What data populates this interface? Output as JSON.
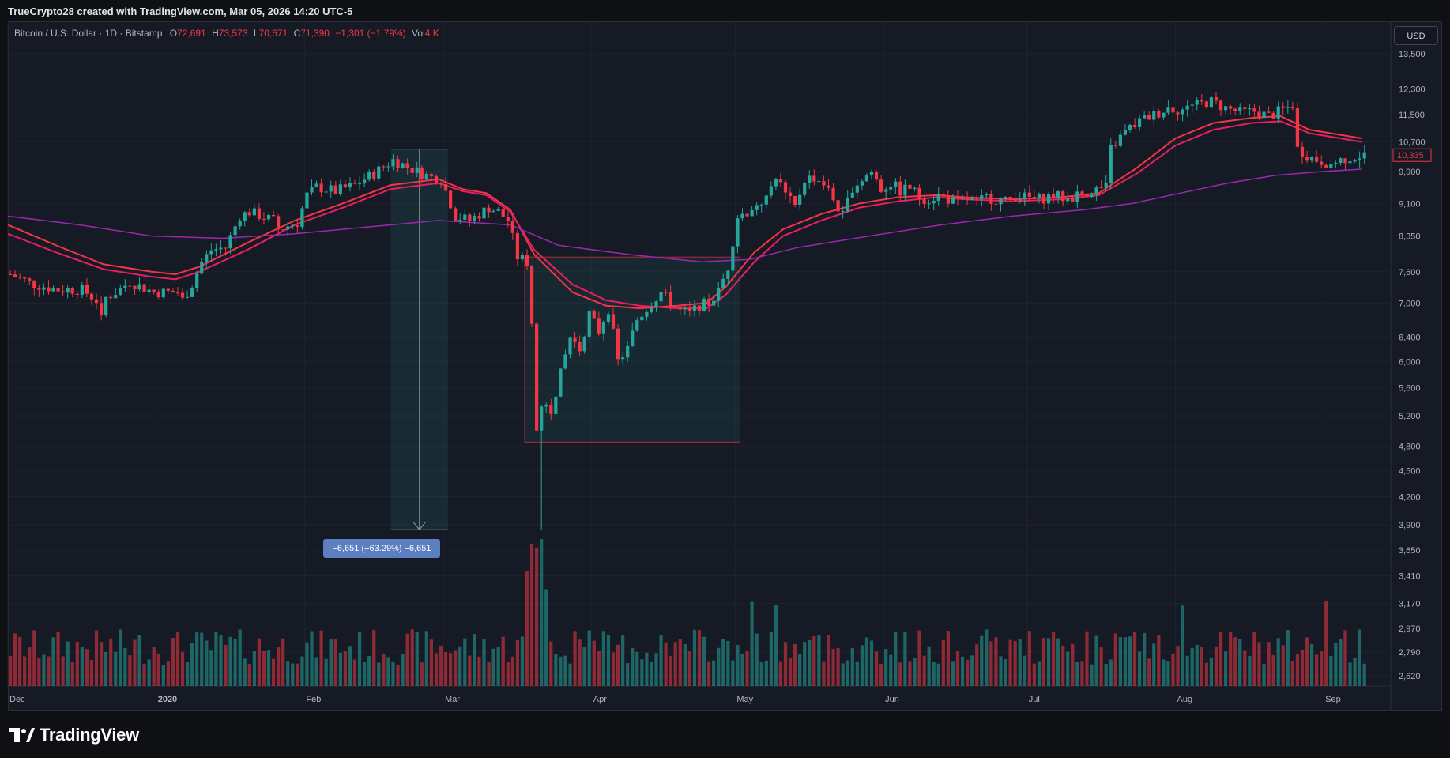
{
  "header": {
    "attribution": "TrueCrypto28 created with TradingView.com, Mar 05, 2026 14:20 UTC-5"
  },
  "legend": {
    "symbol": "Bitcoin / U.S. Dollar · 1D · Bitstamp",
    "o_label": "O",
    "o_value": "72,691",
    "h_label": "H",
    "h_value": "73,573",
    "l_label": "L",
    "l_value": "70,671",
    "c_label": "C",
    "c_value": "71,390",
    "change": "−1,301 (−1.79%)",
    "vol_label": "Vol",
    "vol_value": "4 K"
  },
  "currency_button": "USD",
  "measure_label": "−6,651 (−63.29%) −6,651",
  "last_price_label": "10,335",
  "brand": "TradingView",
  "colors": {
    "up": "#26a69a",
    "down": "#f23645",
    "ma_fast": "#f23645",
    "ma_slow": "#e91e63",
    "ma_long": "#9c27b0",
    "highlight_up": "#2962ff"
  },
  "chart_data": {
    "type": "candlestick",
    "title": "",
    "y_scale": "log",
    "y_ticks": [
      13500,
      12300,
      11500,
      10700,
      9900,
      9100,
      8350,
      7600,
      7000,
      6400,
      6000,
      5600,
      5200,
      4800,
      4500,
      4200,
      3900,
      3650,
      3410,
      3170,
      2970,
      2790,
      2620
    ],
    "y_tick_labels": [
      "13,500",
      "12,300",
      "11,500",
      "10,700",
      "9,900",
      "9,100",
      "8,350",
      "7,600",
      "7,000",
      "6,400",
      "6,000",
      "5,600",
      "5,200",
      "4,800",
      "4,500",
      "4,200",
      "3,900",
      "3,650",
      "3,410",
      "3,170",
      "2,970",
      "2,790",
      "2,620"
    ],
    "x_tick_labels": [
      "Dec",
      "2020",
      "Feb",
      "Mar",
      "Apr",
      "May",
      "Jun",
      "Jul",
      "Aug",
      "Sep"
    ],
    "x_tick_days": [
      0,
      31,
      62,
      91,
      122,
      152,
      183,
      213,
      244,
      275
    ],
    "days_total": 289,
    "price_path": [
      [
        0,
        7550
      ],
      [
        5,
        7350
      ],
      [
        10,
        7250
      ],
      [
        15,
        7250
      ],
      [
        18,
        7050
      ],
      [
        19,
        6700
      ],
      [
        20,
        7100
      ],
      [
        22,
        7200
      ],
      [
        25,
        7400
      ],
      [
        30,
        7200
      ],
      [
        35,
        7200
      ],
      [
        36,
        7050
      ],
      [
        38,
        7350
      ],
      [
        40,
        7800
      ],
      [
        42,
        8050
      ],
      [
        45,
        8100
      ],
      [
        48,
        8800
      ],
      [
        50,
        8900
      ],
      [
        55,
        8700
      ],
      [
        56,
        8500
      ],
      [
        60,
        8650
      ],
      [
        62,
        9300
      ],
      [
        64,
        9500
      ],
      [
        68,
        9400
      ],
      [
        72,
        9550
      ],
      [
        76,
        9850
      ],
      [
        80,
        10200
      ],
      [
        85,
        9900
      ],
      [
        88,
        9750
      ],
      [
        90,
        9700
      ],
      [
        93,
        8800
      ],
      [
        96,
        8700
      ],
      [
        100,
        9000
      ],
      [
        102,
        8900
      ],
      [
        104,
        8700
      ],
      [
        106,
        7900
      ],
      [
        108,
        7800
      ],
      [
        110,
        5400
      ],
      [
        113,
        5300
      ],
      [
        115,
        5800
      ],
      [
        117,
        6400
      ],
      [
        119,
        6200
      ],
      [
        121,
        6800
      ],
      [
        123,
        6500
      ],
      [
        125,
        6900
      ],
      [
        127,
        6000
      ],
      [
        129,
        6200
      ],
      [
        131,
        6700
      ],
      [
        133,
        6900
      ],
      [
        136,
        7200
      ],
      [
        138,
        7000
      ],
      [
        140,
        6850
      ],
      [
        142,
        6800
      ],
      [
        144,
        6950
      ],
      [
        146,
        7000
      ],
      [
        148,
        7200
      ],
      [
        150,
        7700
      ],
      [
        152,
        8800
      ],
      [
        154,
        8900
      ],
      [
        156,
        9100
      ],
      [
        158,
        9200
      ],
      [
        160,
        9800
      ],
      [
        162,
        9300
      ],
      [
        164,
        9000
      ],
      [
        166,
        9700
      ],
      [
        168,
        9750
      ],
      [
        170,
        9600
      ],
      [
        172,
        9200
      ],
      [
        174,
        8800
      ],
      [
        176,
        9500
      ],
      [
        178,
        9700
      ],
      [
        180,
        9900
      ],
      [
        182,
        9450
      ],
      [
        184,
        9600
      ],
      [
        186,
        9400
      ],
      [
        188,
        9500
      ],
      [
        190,
        9250
      ],
      [
        192,
        9200
      ],
      [
        194,
        9300
      ],
      [
        196,
        9200
      ],
      [
        198,
        9100
      ],
      [
        200,
        9200
      ],
      [
        202,
        9100
      ],
      [
        204,
        9250
      ],
      [
        206,
        9200
      ],
      [
        208,
        9150
      ],
      [
        210,
        9300
      ],
      [
        212,
        9250
      ],
      [
        215,
        9200
      ],
      [
        218,
        9300
      ],
      [
        221,
        9200
      ],
      [
        224,
        9350
      ],
      [
        229,
        9500
      ],
      [
        230,
        10500
      ],
      [
        233,
        11000
      ],
      [
        236,
        11300
      ],
      [
        239,
        11500
      ],
      [
        242,
        11700
      ],
      [
        245,
        11650
      ],
      [
        248,
        11800
      ],
      [
        251,
        11900
      ],
      [
        254,
        11700
      ],
      [
        257,
        11550
      ],
      [
        260,
        11600
      ],
      [
        263,
        11450
      ],
      [
        266,
        11650
      ],
      [
        268,
        11800
      ],
      [
        269,
        10500
      ],
      [
        272,
        10250
      ],
      [
        276,
        10100
      ],
      [
        279,
        10250
      ],
      [
        283,
        10335
      ]
    ],
    "moving_averages": [
      {
        "name": "",
        "color": "#f23645",
        "path": [
          [
            0,
            8600
          ],
          [
            10,
            8150
          ],
          [
            20,
            7750
          ],
          [
            30,
            7600
          ],
          [
            35,
            7550
          ],
          [
            40,
            7700
          ],
          [
            50,
            8200
          ],
          [
            60,
            8700
          ],
          [
            70,
            9100
          ],
          [
            80,
            9550
          ],
          [
            90,
            9700
          ],
          [
            95,
            9450
          ],
          [
            100,
            9350
          ],
          [
            105,
            8950
          ],
          [
            110,
            7950
          ],
          [
            118,
            7200
          ],
          [
            125,
            6950
          ],
          [
            132,
            6900
          ],
          [
            140,
            6950
          ],
          [
            146,
            7000
          ],
          [
            150,
            7300
          ],
          [
            156,
            8000
          ],
          [
            162,
            8500
          ],
          [
            170,
            8850
          ],
          [
            178,
            9100
          ],
          [
            186,
            9250
          ],
          [
            194,
            9300
          ],
          [
            200,
            9250
          ],
          [
            210,
            9200
          ],
          [
            220,
            9250
          ],
          [
            228,
            9350
          ],
          [
            236,
            10000
          ],
          [
            244,
            10800
          ],
          [
            252,
            11250
          ],
          [
            260,
            11400
          ],
          [
            266,
            11450
          ],
          [
            272,
            11050
          ],
          [
            283,
            10800
          ]
        ]
      },
      {
        "name": "",
        "color": "#e91e63",
        "path": [
          [
            0,
            8400
          ],
          [
            10,
            8000
          ],
          [
            20,
            7650
          ],
          [
            30,
            7500
          ],
          [
            35,
            7450
          ],
          [
            40,
            7600
          ],
          [
            50,
            8050
          ],
          [
            60,
            8600
          ],
          [
            70,
            9000
          ],
          [
            80,
            9450
          ],
          [
            90,
            9600
          ],
          [
            95,
            9400
          ],
          [
            100,
            9300
          ],
          [
            105,
            8900
          ],
          [
            110,
            8050
          ],
          [
            118,
            7350
          ],
          [
            125,
            7050
          ],
          [
            132,
            6950
          ],
          [
            140,
            6900
          ],
          [
            146,
            6900
          ],
          [
            150,
            7150
          ],
          [
            156,
            7800
          ],
          [
            162,
            8350
          ],
          [
            170,
            8700
          ],
          [
            178,
            9000
          ],
          [
            186,
            9150
          ],
          [
            194,
            9250
          ],
          [
            200,
            9200
          ],
          [
            210,
            9150
          ],
          [
            220,
            9200
          ],
          [
            228,
            9300
          ],
          [
            236,
            9850
          ],
          [
            244,
            10600
          ],
          [
            252,
            11050
          ],
          [
            260,
            11250
          ],
          [
            266,
            11300
          ],
          [
            272,
            10950
          ],
          [
            283,
            10700
          ]
        ]
      },
      {
        "name": "",
        "color": "#9c27b0",
        "path": [
          [
            0,
            8800
          ],
          [
            15,
            8600
          ],
          [
            30,
            8350
          ],
          [
            45,
            8300
          ],
          [
            60,
            8400
          ],
          [
            75,
            8550
          ],
          [
            90,
            8700
          ],
          [
            105,
            8600
          ],
          [
            115,
            8150
          ],
          [
            130,
            7950
          ],
          [
            145,
            7800
          ],
          [
            155,
            7850
          ],
          [
            165,
            8100
          ],
          [
            180,
            8350
          ],
          [
            195,
            8600
          ],
          [
            210,
            8800
          ],
          [
            225,
            8950
          ],
          [
            235,
            9100
          ],
          [
            245,
            9350
          ],
          [
            255,
            9600
          ],
          [
            265,
            9800
          ],
          [
            275,
            9900
          ],
          [
            283,
            9960
          ]
        ]
      }
    ],
    "volume_note": "volume histogram bars, relative heights",
    "measure": {
      "from_price": 10500,
      "to_price": 3850,
      "change": -6651,
      "change_pct": -63.29
    }
  }
}
